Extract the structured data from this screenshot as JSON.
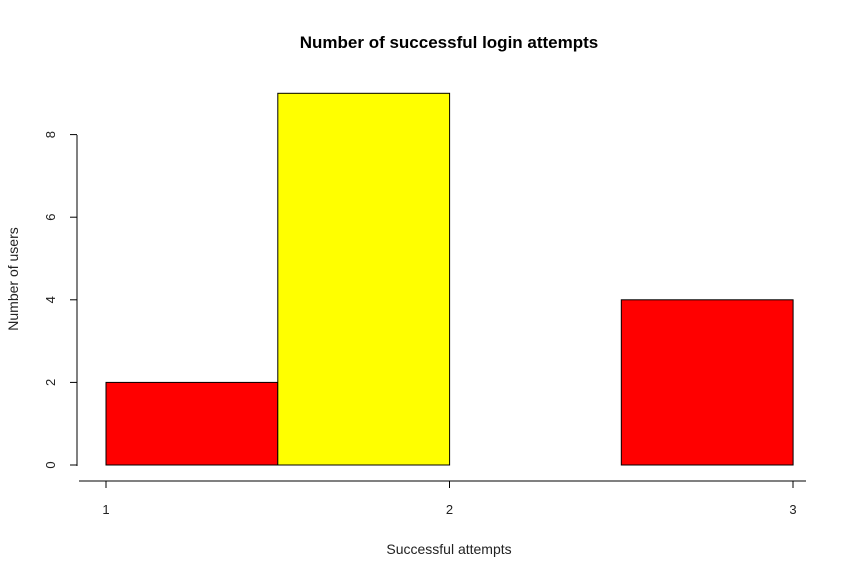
{
  "chart_data": {
    "type": "bar",
    "title": "Number of successful login attempts",
    "xlabel": "Successful attempts",
    "ylabel": "Number of users",
    "bins": [
      {
        "x0": 1.0,
        "x1": 1.5,
        "value": 2,
        "color": "#ff0000"
      },
      {
        "x0": 1.5,
        "x1": 2.0,
        "value": 9,
        "color": "#ffff00"
      },
      {
        "x0": 2.0,
        "x1": 2.5,
        "value": 0,
        "color": "#ff0000"
      },
      {
        "x0": 2.5,
        "x1": 3.0,
        "value": 4,
        "color": "#ff0000"
      }
    ],
    "xlim": [
      1,
      3
    ],
    "ylim": [
      0,
      9
    ],
    "xticks": [
      1,
      2,
      3
    ],
    "xtick_labels": [
      "1",
      "2",
      "3"
    ],
    "yticks": [
      0,
      2,
      4,
      6,
      8
    ],
    "ytick_labels": [
      "0",
      "2",
      "4",
      "6",
      "8"
    ],
    "grid": false,
    "legend": "none"
  }
}
